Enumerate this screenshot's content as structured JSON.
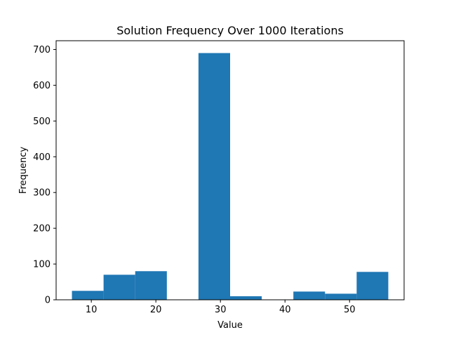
{
  "chart_data": {
    "type": "bar",
    "subtype": "histogram",
    "title": "Solution Frequency Over 1000 Iterations",
    "xlabel": "Value",
    "ylabel": "Frequency",
    "bins": [
      {
        "start": 7.0,
        "end": 11.9,
        "count": 25
      },
      {
        "start": 11.9,
        "end": 16.8,
        "count": 70
      },
      {
        "start": 16.8,
        "end": 21.7,
        "count": 80
      },
      {
        "start": 21.7,
        "end": 26.6,
        "count": 0
      },
      {
        "start": 26.6,
        "end": 31.5,
        "count": 690
      },
      {
        "start": 31.5,
        "end": 36.4,
        "count": 10
      },
      {
        "start": 36.4,
        "end": 41.3,
        "count": 0
      },
      {
        "start": 41.3,
        "end": 46.2,
        "count": 23
      },
      {
        "start": 46.2,
        "end": 51.1,
        "count": 17
      },
      {
        "start": 51.1,
        "end": 56.0,
        "count": 78
      }
    ],
    "xlim": [
      4.55,
      58.45
    ],
    "ylim": [
      0,
      724.5
    ],
    "xticks": [
      10,
      20,
      30,
      40,
      50
    ],
    "yticks": [
      0,
      100,
      200,
      300,
      400,
      500,
      600,
      700
    ],
    "bar_color": "#1f77b4",
    "grid": false,
    "legend": "none"
  }
}
